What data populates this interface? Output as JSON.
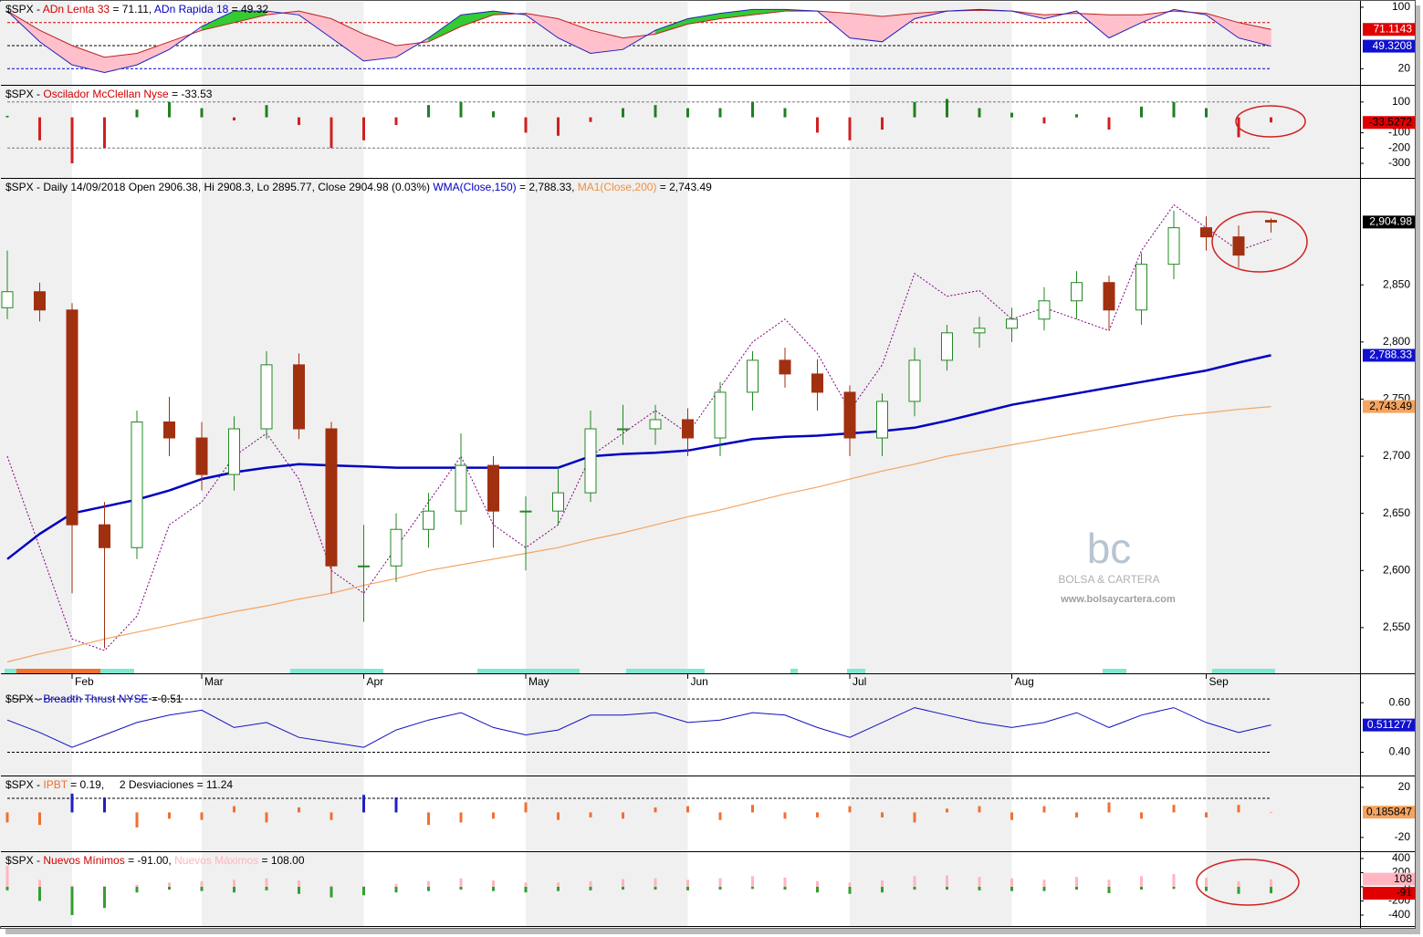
{
  "chart_data": [
    {
      "type": "line",
      "title_parts": [
        {
          "text": "$SPX - ",
          "color": "#000000"
        },
        {
          "text": "ADn Lenta 33",
          "color": "#d00000"
        },
        {
          "text": " = 71.11, ",
          "color": "#000000"
        },
        {
          "text": "ADn Rapida 18",
          "color": "#0000c0"
        },
        {
          "text": " = 49.32",
          "color": "#000000"
        }
      ],
      "ylim": [
        -1,
        107
      ],
      "yticks": [
        20,
        100
      ],
      "reference_lines": [
        {
          "value": 80,
          "color": "#d00000"
        },
        {
          "value": 50,
          "color": "#000000"
        },
        {
          "value": 20,
          "color": "#0000c0"
        }
      ],
      "fill_colors": {
        "above": "#33cc33",
        "below": "#ffc0cb"
      },
      "series": [
        {
          "color": "#c02020",
          "values": [
            95,
            70,
            50,
            35,
            40,
            55,
            70,
            80,
            90,
            95,
            85,
            65,
            50,
            55,
            75,
            90,
            92,
            85,
            70,
            60,
            65,
            78,
            85,
            90,
            95,
            95,
            92,
            88,
            92,
            95,
            96,
            95,
            90,
            92,
            90,
            90,
            95,
            92,
            80,
            71.11
          ],
          "last_label": "71.1143",
          "label_fill": "#e00000",
          "label_text": "#ffffff"
        },
        {
          "color": "#2020c0",
          "values": [
            95,
            55,
            25,
            15,
            25,
            45,
            75,
            95,
            95,
            90,
            60,
            30,
            35,
            60,
            90,
            95,
            90,
            60,
            40,
            45,
            70,
            85,
            92,
            97,
            97,
            95,
            60,
            55,
            85,
            95,
            97,
            95,
            85,
            95,
            60,
            80,
            97,
            90,
            60,
            49.32
          ],
          "last_label": "49.3208",
          "label_fill": "#1010d0",
          "label_text": "#ffffff"
        }
      ]
    },
    {
      "type": "bar",
      "title_parts": [
        {
          "text": "$SPX - ",
          "color": "#000000"
        },
        {
          "text": "Oscilador McClellan Nyse",
          "color": "#d00000"
        },
        {
          "text": " = -33.53",
          "color": "#000000"
        }
      ],
      "ylim": [
        -395,
        200
      ],
      "yticks": [
        100,
        -100,
        -200,
        -300
      ],
      "reference_lines": [
        {
          "value": 100,
          "color": "#777777"
        },
        {
          "value": -200,
          "color": "#777777"
        }
      ],
      "series": [
        {
          "color": "#208020",
          "negative_color": "#d02020",
          "values": [
            10,
            -150,
            -300,
            -200,
            50,
            100,
            60,
            -20,
            80,
            -50,
            -200,
            -150,
            -50,
            80,
            100,
            40,
            -100,
            -120,
            -30,
            60,
            80,
            60,
            60,
            100,
            60,
            -100,
            -150,
            -80,
            100,
            120,
            60,
            30,
            -40,
            20,
            -80,
            70,
            100,
            60,
            -130,
            -33.53
          ],
          "last_label": "-33.5272",
          "label_fill": "#e00000",
          "label_text": "#000000"
        }
      ]
    },
    {
      "type": "candlestick",
      "title_parts": [
        {
          "text": "$SPX - Daily 14/09/2018 Open 2906.38, Hi 2908.3, Lo 2895.77, Close 2904.98 (0.03%) ",
          "color": "#000000"
        },
        {
          "text": "WMA(Close,150)",
          "color": "#0000c0"
        },
        {
          "text": " = 2,788.33, ",
          "color": "#000000"
        },
        {
          "text": "MA1(Close,200)",
          "color": "#f09040"
        },
        {
          "text": " = 2,743.49",
          "color": "#000000"
        }
      ],
      "categories": [
        null,
        null,
        "Feb",
        null,
        null,
        null,
        "Mar",
        null,
        null,
        null,
        null,
        "Apr",
        null,
        null,
        null,
        null,
        "May",
        null,
        null,
        null,
        null,
        "Jun",
        null,
        null,
        null,
        null,
        "Jul",
        null,
        null,
        null,
        null,
        "Aug",
        null,
        null,
        null,
        null,
        null,
        "Sep",
        null,
        null
      ],
      "ylim": [
        2510,
        2942
      ],
      "yticks": [
        {
          "value": 2550,
          "label": "2,550"
        },
        {
          "value": 2600,
          "label": "2,600"
        },
        {
          "value": 2650,
          "label": "2,650"
        },
        {
          "value": 2700,
          "label": "2,700"
        },
        {
          "value": 2750,
          "label": "2,750"
        },
        {
          "value": 2800,
          "label": "2,800"
        },
        {
          "value": 2850,
          "label": "2,850"
        }
      ],
      "candles": {
        "open": [
          2830,
          2844,
          2828,
          2640,
          2620,
          2730,
          2716,
          2684,
          2724,
          2780,
          2724,
          2604,
          2604,
          2636,
          2652,
          2692,
          2652,
          2652,
          2668,
          2724,
          2724,
          2732,
          2716,
          2756,
          2784,
          2772,
          2756,
          2716,
          2748,
          2784,
          2808,
          2812,
          2820,
          2836,
          2852,
          2828,
          2868,
          2900,
          2892,
          2906.38
        ],
        "high": [
          2880,
          2852,
          2834,
          2660,
          2740,
          2752,
          2730,
          2735,
          2792,
          2790,
          2730,
          2640,
          2650,
          2668,
          2720,
          2700,
          2665,
          2690,
          2740,
          2745,
          2745,
          2742,
          2765,
          2792,
          2795,
          2785,
          2762,
          2755,
          2795,
          2815,
          2822,
          2830,
          2848,
          2862,
          2858,
          2878,
          2915,
          2910,
          2902,
          2908.3
        ],
        "low": [
          2820,
          2818,
          2580,
          2532,
          2610,
          2700,
          2670,
          2670,
          2715,
          2715,
          2580,
          2555,
          2590,
          2620,
          2640,
          2620,
          2600,
          2640,
          2660,
          2710,
          2710,
          2700,
          2700,
          2740,
          2760,
          2740,
          2700,
          2700,
          2735,
          2775,
          2795,
          2800,
          2810,
          2820,
          2810,
          2815,
          2855,
          2880,
          2865,
          2895.77
        ],
        "close": [
          2844,
          2828,
          2640,
          2620,
          2730,
          2716,
          2684,
          2724,
          2780,
          2724,
          2604,
          2604,
          2636,
          2652,
          2692,
          2652,
          2652,
          2668,
          2724,
          2724,
          2732,
          2716,
          2756,
          2784,
          2772,
          2756,
          2716,
          2748,
          2784,
          2808,
          2812,
          2820,
          2836,
          2852,
          2828,
          2868,
          2900,
          2892,
          2876,
          2904.98
        ],
        "up_color": "#228822",
        "down_color": "#a03010",
        "last_label": "2,904.98",
        "label_fill": "#000000",
        "label_text": "#ffffff"
      },
      "series": [
        {
          "color": "#800080",
          "style": "dotted",
          "values": [
            2700,
            2620,
            2540,
            2530,
            2560,
            2640,
            2660,
            2700,
            2720,
            2680,
            2600,
            2580,
            2620,
            2660,
            2700,
            2640,
            2620,
            2640,
            2700,
            2720,
            2740,
            2720,
            2760,
            2800,
            2820,
            2790,
            2740,
            2780,
            2860,
            2840,
            2845,
            2820,
            2830,
            2820,
            2810,
            2880,
            2920,
            2900,
            2880,
            2890
          ]
        },
        {
          "color": "#0000c0",
          "width": 2.5,
          "values": [
            2610,
            2632,
            2650,
            2656,
            2662,
            2670,
            2680,
            2686,
            2690,
            2693,
            2692,
            2691,
            2690,
            2690,
            2690,
            2690,
            2690,
            2690,
            2700,
            2702,
            2703,
            2705,
            2710,
            2715,
            2717,
            2718,
            2720,
            2722,
            2725,
            2731,
            2738,
            2745,
            2750,
            2755,
            2760,
            2765,
            2770,
            2775,
            2782,
            2788.33
          ],
          "last_label": "2,788.33",
          "label_fill": "#1010d0",
          "label_text": "#ffffff"
        },
        {
          "color": "#f4a460",
          "width": 1.2,
          "values": [
            2520,
            2527,
            2533,
            2540,
            2546,
            2552,
            2558,
            2564,
            2569,
            2575,
            2580,
            2587,
            2593,
            2600,
            2605,
            2610,
            2615,
            2620,
            2627,
            2633,
            2640,
            2647,
            2653,
            2660,
            2667,
            2673,
            2680,
            2687,
            2693,
            2700,
            2705,
            2710,
            2715,
            2720,
            2725,
            2730,
            2735,
            2738,
            2741,
            2743.49
          ],
          "last_label": "2,743.49",
          "label_fill": "#f4a460",
          "label_text": "#000000"
        }
      ]
    },
    {
      "type": "line",
      "title_parts": [
        {
          "text": "$SPX - ",
          "color": "#000000"
        },
        {
          "text": "Breadth Thrust NYSE",
          "color": "#0000c0"
        },
        {
          "text": " = 0.51",
          "color": "#000000"
        }
      ],
      "ylim": [
        0.306,
        0.645
      ],
      "yticks": [
        {
          "value": 0.6,
          "label": "0.60"
        },
        {
          "value": 0.4,
          "label": "0.40"
        }
      ],
      "reference_lines": [
        {
          "value": 0.615,
          "color": "#000000"
        },
        {
          "value": 0.4,
          "color": "#000000"
        }
      ],
      "series": [
        {
          "color": "#1010c0",
          "values": [
            0.53,
            0.48,
            0.42,
            0.47,
            0.52,
            0.55,
            0.57,
            0.5,
            0.52,
            0.46,
            0.44,
            0.42,
            0.49,
            0.53,
            0.56,
            0.5,
            0.47,
            0.49,
            0.55,
            0.55,
            0.56,
            0.52,
            0.53,
            0.56,
            0.55,
            0.5,
            0.46,
            0.52,
            0.58,
            0.55,
            0.52,
            0.5,
            0.52,
            0.56,
            0.5,
            0.55,
            0.58,
            0.52,
            0.48,
            0.51
          ],
          "last_label": "0.511277",
          "label_fill": "#1010d0",
          "label_text": "#ffffff"
        }
      ]
    },
    {
      "type": "bar",
      "title_parts": [
        {
          "text": "$SPX - ",
          "color": "#000000"
        },
        {
          "text": "IPBT",
          "color": "#f07030"
        },
        {
          "text": " = 0.19,     2 Desviaciones = 11.24",
          "color": "#000000"
        }
      ],
      "ylim": [
        -31,
        28
      ],
      "yticks": [
        20,
        -20
      ],
      "reference_lines": [
        {
          "value": 11.24,
          "color": "#000000"
        }
      ],
      "series": [
        {
          "color": "#f07030",
          "above_color": "#2020c0",
          "values": [
            -8,
            -10,
            15,
            12,
            -12,
            -5,
            -6,
            5,
            -8,
            4,
            -6,
            14,
            12,
            -10,
            -8,
            -5,
            8,
            -6,
            -4,
            -5,
            4,
            5,
            -6,
            6,
            -5,
            -4,
            5,
            -4,
            -8,
            3,
            5,
            -6,
            5,
            -4,
            8,
            -5,
            6,
            -4,
            6,
            0.19
          ],
          "last_label": "0.185847",
          "label_fill": "#f4a460",
          "label_text": "#000000"
        }
      ]
    },
    {
      "type": "bar",
      "title_parts": [
        {
          "text": "$SPX - ",
          "color": "#000000"
        },
        {
          "text": "Nuevos Mínimos",
          "color": "#d00000"
        },
        {
          "text": " = -91.00, ",
          "color": "#000000"
        },
        {
          "text": "Nuevos Máximos",
          "color": "#ffb6c1"
        },
        {
          "text": " = 108.00",
          "color": "#000000"
        }
      ],
      "ylim": [
        -555,
        477
      ],
      "yticks": [
        400,
        200,
        0,
        -200,
        -400
      ],
      "reference_lines": [],
      "series": [
        {
          "color": "#30a030",
          "values": [
            -50,
            -200,
            -400,
            -300,
            -80,
            -40,
            -60,
            -80,
            -50,
            -100,
            -150,
            -120,
            -80,
            -60,
            -40,
            -60,
            -80,
            -60,
            -50,
            -40,
            -40,
            -50,
            -40,
            -30,
            -40,
            -80,
            -100,
            -80,
            -40,
            -40,
            -50,
            -60,
            -60,
            -40,
            -90,
            -40,
            -30,
            -60,
            -100,
            -91
          ],
          "last_label": "-91",
          "label_fill": "#e00000",
          "label_text": "#000000"
        },
        {
          "color": "#ffb6c1",
          "values": [
            300,
            100,
            20,
            10,
            30,
            60,
            80,
            100,
            120,
            90,
            20,
            10,
            40,
            80,
            120,
            90,
            60,
            60,
            80,
            110,
            120,
            100,
            120,
            150,
            130,
            80,
            60,
            90,
            150,
            160,
            140,
            120,
            100,
            140,
            100,
            150,
            180,
            130,
            80,
            108
          ],
          "last_label": "108",
          "label_fill": "#ffb6c1",
          "label_text": "#000000"
        }
      ]
    }
  ],
  "watermark": {
    "logo": "bc",
    "name": "BOLSA & CARTERA",
    "url": "www.bolsaycartera.com"
  }
}
